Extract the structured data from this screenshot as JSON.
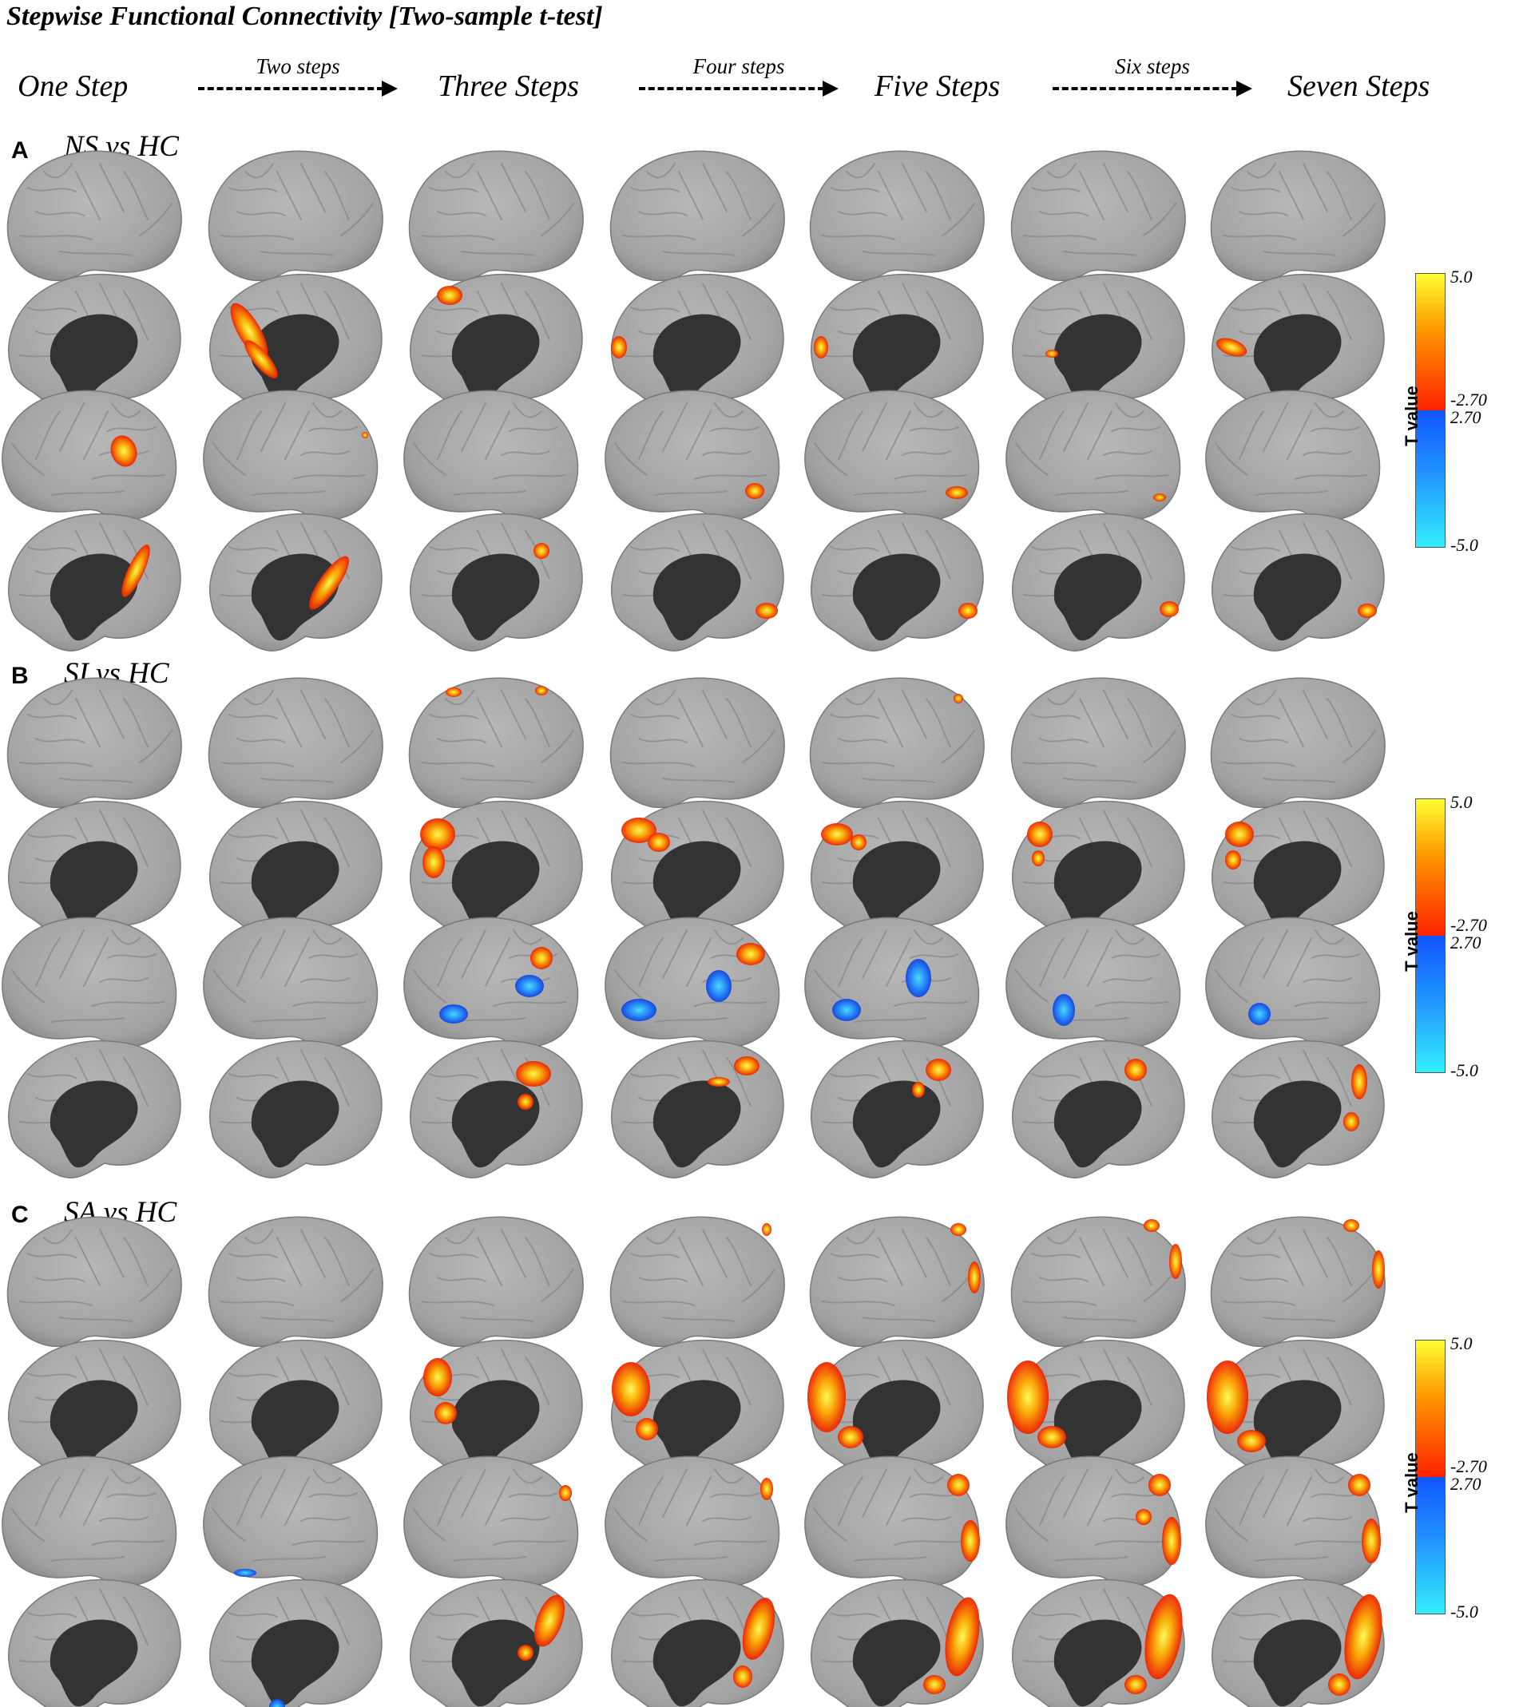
{
  "title": "Stepwise Functional Connectivity [Two-sample t-test]",
  "steps": [
    "One Step",
    "Three Steps",
    "Five Steps",
    "Seven Steps"
  ],
  "transitions": [
    "Two steps",
    "Four steps",
    "Six steps"
  ],
  "sections": [
    {
      "letter": "A",
      "label": "NS vs HC"
    },
    {
      "letter": "B",
      "label": "SI vs HC"
    },
    {
      "letter": "C",
      "label": "SA vs HC"
    }
  ],
  "colorbar": {
    "axis_label": "T value",
    "max": "5.0",
    "pos_threshold": "-2.70",
    "neg_threshold": "2.70",
    "min": "-5.0"
  },
  "colors": {
    "brain": "#a6a6a6",
    "medial_wall": "#333333",
    "positive": "#ff3300",
    "positive_peak": "#ffee33",
    "negative": "#2277ff",
    "negative_peak": "#44ddff"
  }
}
